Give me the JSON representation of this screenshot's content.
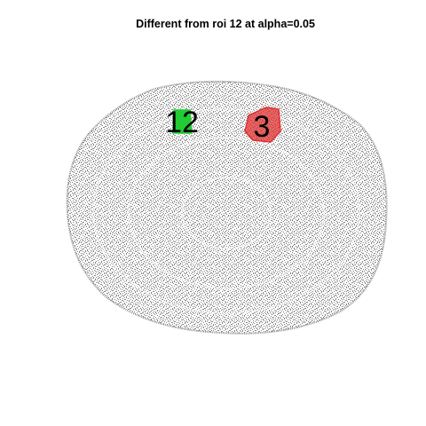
{
  "title": "Different from roi 12 at alpha=0.05",
  "regions": [
    {
      "label": "12",
      "color": "#22cc33"
    },
    {
      "label": "3",
      "color": "#e03030"
    }
  ]
}
